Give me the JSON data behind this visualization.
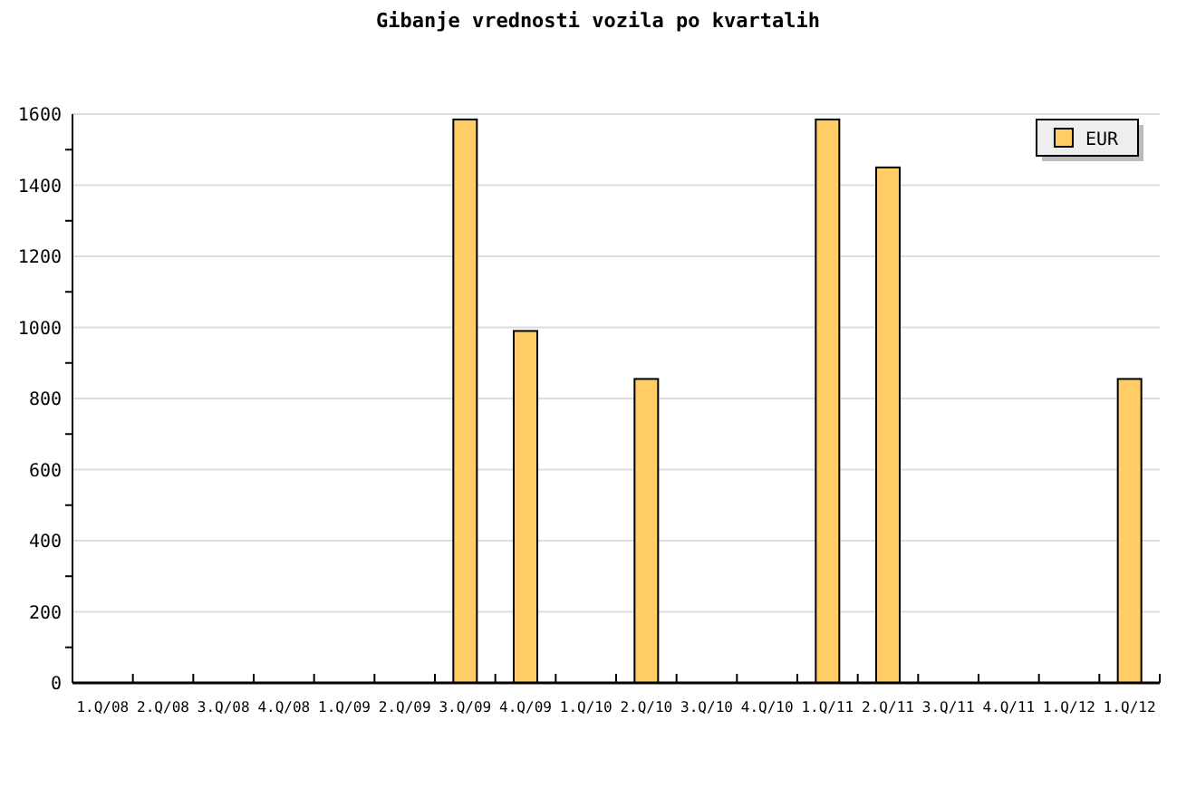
{
  "chart_data": {
    "type": "bar",
    "title": "Gibanje vrednosti vozila po kvartalih",
    "categories": [
      "1.Q/08",
      "2.Q/08",
      "3.Q/08",
      "4.Q/08",
      "1.Q/09",
      "2.Q/09",
      "3.Q/09",
      "4.Q/09",
      "1.Q/10",
      "2.Q/10",
      "3.Q/10",
      "4.Q/10",
      "1.Q/11",
      "2.Q/11",
      "3.Q/11",
      "4.Q/11",
      "1.Q/12",
      "1.Q/12"
    ],
    "series": [
      {
        "name": "EUR",
        "color": "#ffcc66",
        "values": [
          0,
          0,
          0,
          0,
          0,
          0,
          1585,
          990,
          0,
          855,
          0,
          0,
          1585,
          1450,
          0,
          0,
          0,
          855
        ]
      }
    ],
    "ylim": [
      0,
      1600
    ],
    "yticks": [
      0,
      {
        "value": 100,
        "label": null
      },
      200,
      {
        "value": 300,
        "label": null
      },
      400,
      {
        "value": 500,
        "label": null
      },
      600,
      {
        "value": 700,
        "label": null
      },
      800,
      {
        "value": 900,
        "label": null
      },
      1000,
      {
        "value": 1100,
        "label": null
      },
      1200,
      {
        "value": 1300,
        "label": null
      },
      1400,
      {
        "value": 1500,
        "label": null
      },
      1600
    ],
    "grid": "y",
    "legend": "top right"
  }
}
